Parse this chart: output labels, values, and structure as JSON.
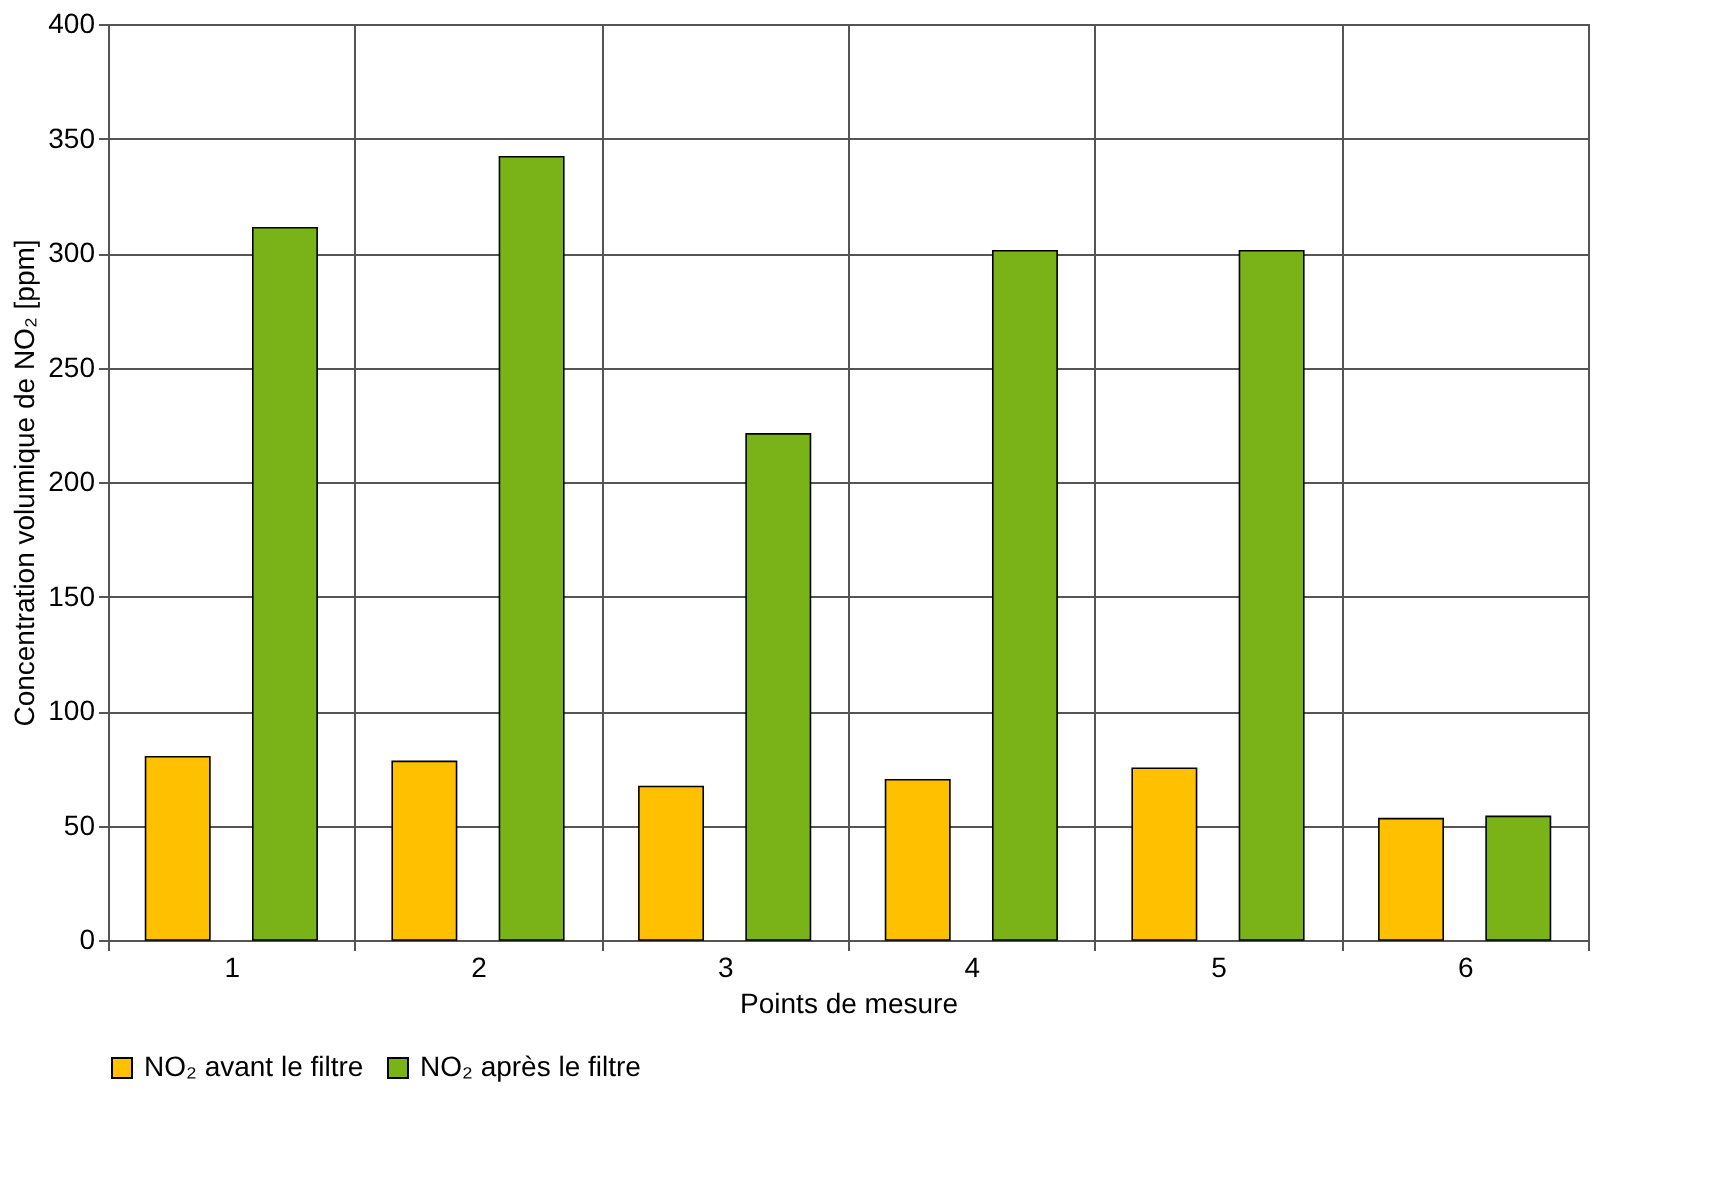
{
  "chart_data": {
    "type": "bar",
    "xlabel": "Points de mesure",
    "ylabel": "Concentration volumique de NO₂ [ppm]",
    "categories": [
      "1",
      "2",
      "3",
      "4",
      "5",
      "6"
    ],
    "series": [
      {
        "name": "NO₂ avant le filtre",
        "color": "#ffc000",
        "values": [
          80,
          78,
          67,
          70,
          75,
          53
        ]
      },
      {
        "name": "NO₂ après le filtre",
        "color": "#7ab317",
        "values": [
          311,
          342,
          221,
          301,
          301,
          54
        ]
      }
    ],
    "ylim": [
      0,
      400
    ],
    "yticks": [
      0,
      50,
      100,
      150,
      200,
      250,
      300,
      350,
      400
    ],
    "grid": true,
    "legend": "bottom"
  }
}
